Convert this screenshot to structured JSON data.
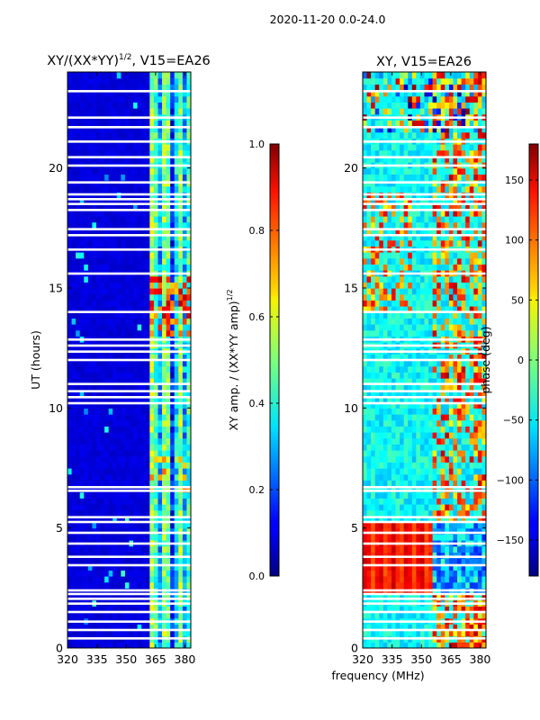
{
  "figure_title": "2020-11-20 0.0-24.0",
  "shared_xlabel": "frequency (MHz)",
  "chart_data": [
    {
      "type": "heatmap",
      "title_base": "XY/(XX*YY)",
      "title_exp": "1/2",
      "title_suffix": ", V15=EA26",
      "ylabel": "UT (hours)",
      "xlim": [
        320,
        383
      ],
      "ylim": [
        0,
        24
      ],
      "xticks": [
        320,
        335,
        350,
        365,
        380
      ],
      "xtick_labels": [
        "320",
        "335",
        "350",
        "365",
        "380"
      ],
      "yticks": [
        0,
        5,
        10,
        15,
        20
      ],
      "ytick_labels": [
        "0",
        "5",
        "10",
        "15",
        "20"
      ],
      "colorbar": {
        "label_base": "XY amp. / (XX*YY amp)",
        "label_exp": "1/2",
        "range": [
          0.0,
          1.0
        ],
        "ticks": [
          0.0,
          0.2,
          0.4,
          0.6,
          0.8,
          1.0
        ],
        "tick_labels": [
          "0.0",
          "0.2",
          "0.4",
          "0.6",
          "0.8",
          "1.0"
        ],
        "colormap": "jet"
      },
      "gaps_hours": [
        0.4,
        0.75,
        1.1,
        1.5,
        1.85,
        2.05,
        2.25,
        2.4,
        3.45,
        3.8,
        4.35,
        4.8,
        5.25,
        5.45,
        6.55,
        6.7,
        10.2,
        10.45,
        10.7,
        11.0,
        12.0,
        12.35,
        12.6,
        12.85,
        14.0,
        15.6,
        16.6,
        17.2,
        17.45,
        18.25,
        18.5,
        18.7,
        18.9,
        19.4,
        20.1,
        20.45,
        21.1,
        21.7,
        22.1,
        23.2
      ],
      "features": "background ~0.08 below 362 MHz; vertical streaks 362-383 MHz at 0.3-0.55; peaks ~0.85 near 13-15.5 h"
    },
    {
      "type": "heatmap",
      "title": "XY, V15=EA26",
      "xlim": [
        320,
        383
      ],
      "ylim": [
        0,
        24
      ],
      "xticks": [
        320,
        335,
        350,
        365,
        380
      ],
      "xtick_labels": [
        "320",
        "335",
        "350",
        "365",
        "380"
      ],
      "yticks": [
        0,
        5,
        10,
        15,
        20
      ],
      "ytick_labels": [
        "0",
        "5",
        "10",
        "15",
        "20"
      ],
      "colorbar": {
        "label": "phase (deg)",
        "range": [
          -180,
          180
        ],
        "ticks": [
          -150,
          -100,
          -50,
          0,
          50,
          100,
          150
        ],
        "tick_labels": [
          "−150",
          "−100",
          "−50",
          "0",
          "50",
          "100",
          "150"
        ],
        "colormap": "jet"
      },
      "gaps_hours": [
        0.4,
        0.75,
        1.1,
        1.5,
        1.85,
        2.05,
        2.25,
        2.4,
        3.45,
        3.8,
        4.35,
        4.8,
        5.25,
        5.45,
        6.55,
        6.7,
        10.2,
        10.45,
        10.7,
        11.0,
        12.0,
        12.35,
        12.6,
        12.85,
        14.0,
        15.6,
        16.6,
        17.2,
        17.45,
        18.25,
        18.5,
        18.7,
        18.9,
        19.4,
        20.1,
        20.45,
        21.1,
        21.7,
        22.1,
        23.2
      ],
      "features": "phase mostly -60 to 20 deg; ~140-170 deg band 2.3-5.3 h below 355 MHz; warm streaks 355-383 MHz"
    }
  ]
}
